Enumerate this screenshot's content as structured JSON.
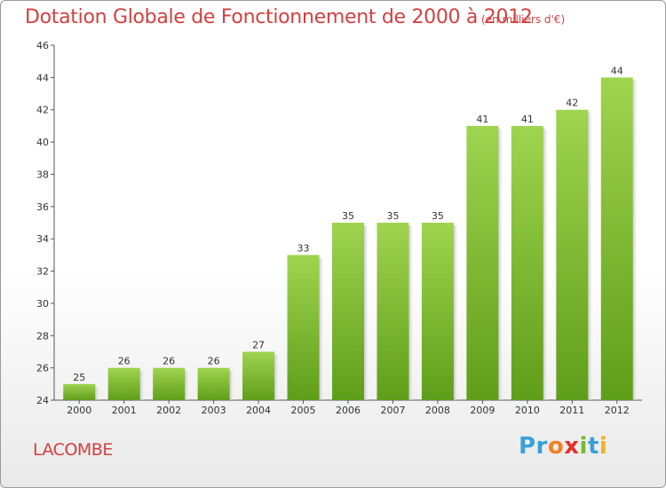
{
  "header": {
    "title": "Dotation Globale de Fonctionnement de 2000 à 2012",
    "subtitle": "(en milliers d'€)"
  },
  "footer": {
    "place": "LACOMBE",
    "brand_parts": [
      {
        "text": "Pr",
        "color": "#3aa0d8"
      },
      {
        "text": "o",
        "color": "#f08020"
      },
      {
        "text": "x",
        "color": "#e2312e"
      },
      {
        "text": "i",
        "color": "#7ab832"
      },
      {
        "text": "t",
        "color": "#3aa0d8"
      },
      {
        "text": "i",
        "color": "#f2b021"
      }
    ]
  },
  "colors": {
    "title": "#d44040",
    "bar_top": "#9fd44f",
    "bar_bottom": "#5f9e1a",
    "axis": "#555555"
  },
  "chart_data": {
    "type": "bar",
    "title": "Dotation Globale de Fonctionnement de 2000 à 2012",
    "subtitle": "(en milliers d'€)",
    "categories": [
      "2000",
      "2001",
      "2002",
      "2003",
      "2004",
      "2005",
      "2006",
      "2007",
      "2008",
      "2009",
      "2010",
      "2011",
      "2012"
    ],
    "values": [
      25,
      26,
      26,
      26,
      27,
      33,
      35,
      35,
      35,
      41,
      41,
      42,
      44
    ],
    "ylim": [
      24,
      46
    ],
    "yticks": [
      24,
      26,
      28,
      30,
      32,
      34,
      36,
      38,
      40,
      42,
      44,
      46
    ],
    "grid": false,
    "legend": "none"
  }
}
